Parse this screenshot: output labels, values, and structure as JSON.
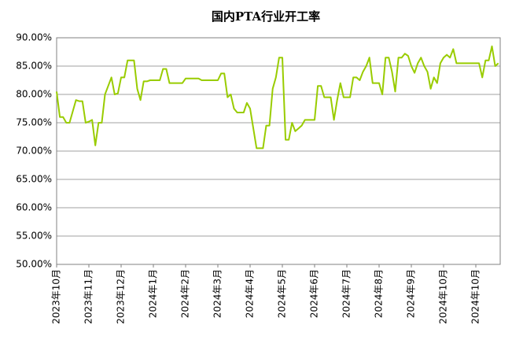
{
  "chart_data": {
    "type": "line",
    "title": "国内PTA行业开工率",
    "categories": [
      "2023年10月",
      null,
      null,
      null,
      null,
      null,
      null,
      null,
      null,
      null,
      "2023年11月",
      null,
      null,
      null,
      null,
      null,
      null,
      null,
      null,
      null,
      "2023年12月",
      null,
      null,
      null,
      null,
      null,
      null,
      null,
      null,
      null,
      "2024年1月",
      null,
      null,
      null,
      null,
      null,
      null,
      null,
      null,
      null,
      "2024年2月",
      null,
      null,
      null,
      null,
      null,
      null,
      null,
      null,
      null,
      "2024年3月",
      null,
      null,
      null,
      null,
      null,
      null,
      null,
      null,
      null,
      "2024年4月",
      null,
      null,
      null,
      null,
      null,
      null,
      null,
      null,
      null,
      "2024年5月",
      null,
      null,
      null,
      null,
      null,
      null,
      null,
      null,
      null,
      "2024年6月",
      null,
      null,
      null,
      null,
      null,
      null,
      null,
      null,
      null,
      "2024年7月",
      null,
      null,
      null,
      null,
      null,
      null,
      null,
      null,
      null,
      "2024年8月",
      null,
      null,
      null,
      null,
      null,
      null,
      null,
      null,
      null,
      "2024年9月",
      null,
      null,
      null,
      null,
      null,
      null,
      null,
      null,
      null,
      "2024年10月",
      null,
      null,
      null,
      null,
      null,
      null,
      null,
      null,
      null,
      "2024年10月",
      null,
      null,
      null,
      null,
      null,
      null,
      null
    ],
    "values": [
      80.5,
      76,
      76,
      75,
      75,
      77,
      79,
      78.8,
      78.8,
      75,
      75.2,
      75.5,
      71,
      75,
      75,
      80,
      81.5,
      83,
      80,
      80.2,
      83,
      83,
      86,
      86,
      86,
      81,
      79,
      82.3,
      82.3,
      82.5,
      82.5,
      82.5,
      82.5,
      84.5,
      84.5,
      82,
      82,
      82,
      82,
      82,
      82.8,
      82.8,
      82.8,
      82.8,
      82.8,
      82.5,
      82.5,
      82.5,
      82.5,
      82.5,
      82.5,
      83.7,
      83.7,
      79.5,
      80,
      77.5,
      76.8,
      76.8,
      76.8,
      78.5,
      77.5,
      74,
      70.5,
      70.5,
      70.5,
      74.5,
      74.5,
      81,
      83,
      86.5,
      86.5,
      72,
      72,
      75,
      73.5,
      74,
      74.5,
      75.5,
      75.5,
      75.5,
      75.5,
      81.5,
      81.5,
      79.5,
      79.5,
      79.5,
      75.5,
      79,
      82,
      79.5,
      79.5,
      79.5,
      83,
      83,
      82.5,
      84,
      85,
      86.5,
      82,
      82,
      82,
      80,
      86.5,
      86.5,
      84,
      80.5,
      86.5,
      86.5,
      87.2,
      86.8,
      85,
      83.8,
      85.5,
      86.5,
      85,
      84,
      81,
      83,
      82,
      85.5,
      86.5,
      87,
      86.5,
      88,
      85.5,
      85.5,
      85.5,
      85.5,
      85.5,
      85.5,
      85.5,
      85.5,
      83,
      86,
      86,
      88.5,
      85,
      85.5
    ],
    "color": "#99cc00",
    "ylim": [
      50,
      90
    ],
    "yticks": [
      {
        "value": 50,
        "label": "50.00%"
      },
      {
        "value": 55,
        "label": "55.00%"
      },
      {
        "value": 60,
        "label": "60.00%"
      },
      {
        "value": 65,
        "label": "65.00%"
      },
      {
        "value": 70,
        "label": "70.00%"
      },
      {
        "value": 75,
        "label": "75.00%"
      },
      {
        "value": 80,
        "label": "80.00%"
      },
      {
        "value": 85,
        "label": "85.00%"
      },
      {
        "value": 90,
        "label": "90.00%"
      }
    ],
    "grid": true
  }
}
